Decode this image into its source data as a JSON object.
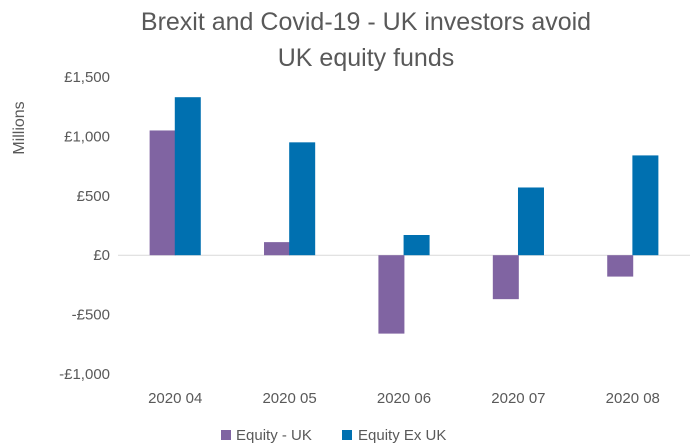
{
  "chart_data": {
    "type": "bar",
    "title": "Brexit and Covid-19 - UK investors avoid UK equity funds",
    "title_lines": [
      "Brexit and Covid-19 - UK investors avoid",
      "UK equity funds"
    ],
    "ylabel": "Millions",
    "xlabel": "",
    "categories": [
      "2020 04",
      "2020 05",
      "2020 06",
      "2020 07",
      "2020 08"
    ],
    "series": [
      {
        "name": "Equity - UK",
        "color": "#8064A2",
        "values": [
          1050,
          110,
          -660,
          -370,
          -180
        ]
      },
      {
        "name": "Equity Ex UK",
        "color": "#0070B0",
        "values": [
          1330,
          950,
          170,
          570,
          840
        ]
      }
    ],
    "ylim": [
      -1000,
      1500
    ],
    "yticks": [
      1500,
      1000,
      500,
      0,
      -500,
      -1000
    ],
    "ytick_labels": [
      "£1,500",
      "£1,000",
      "£500",
      "£0",
      "-£500",
      "-£1,000"
    ],
    "grid": false,
    "legend": "bottom"
  }
}
